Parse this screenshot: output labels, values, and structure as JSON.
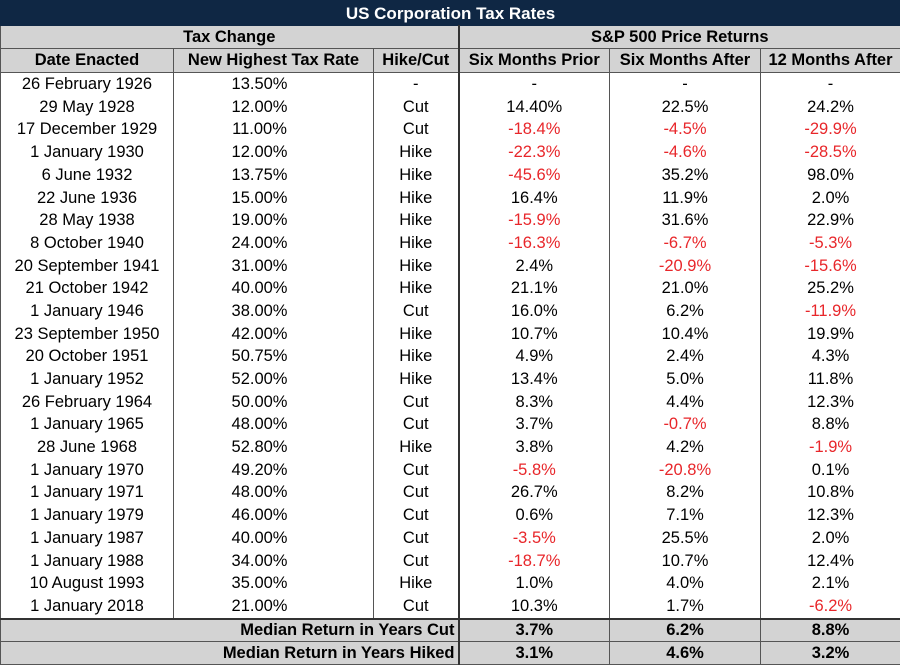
{
  "title": "US Corporation Tax Rates",
  "groups": {
    "tax_change": "Tax Change",
    "sp500": "S&P 500 Price Returns"
  },
  "headers": {
    "date": "Date Enacted",
    "rate": "New Highest Tax Rate",
    "hikecut": "Hike/Cut",
    "prior6": "Six Months Prior",
    "after6": "Six Months After",
    "after12": "12 Months After"
  },
  "colors": {
    "title_bg": "#0f2744",
    "header_bg": "#d3d3d3",
    "negative": "#e8262a"
  },
  "rows": [
    {
      "date": "26 February 1926",
      "rate": "13.50%",
      "action": "-",
      "prior6": "-",
      "after6": "-",
      "after12": "-"
    },
    {
      "date": "29 May 1928",
      "rate": "12.00%",
      "action": "Cut",
      "prior6": "14.40%",
      "after6": "22.5%",
      "after12": "24.2%"
    },
    {
      "date": "17 December 1929",
      "rate": "11.00%",
      "action": "Cut",
      "prior6": "-18.4%",
      "after6": "-4.5%",
      "after12": "-29.9%"
    },
    {
      "date": "1 January 1930",
      "rate": "12.00%",
      "action": "Hike",
      "prior6": "-22.3%",
      "after6": "-4.6%",
      "after12": "-28.5%"
    },
    {
      "date": "6 June 1932",
      "rate": "13.75%",
      "action": "Hike",
      "prior6": "-45.6%",
      "after6": "35.2%",
      "after12": "98.0%"
    },
    {
      "date": "22 June 1936",
      "rate": "15.00%",
      "action": "Hike",
      "prior6": "16.4%",
      "after6": "11.9%",
      "after12": "2.0%"
    },
    {
      "date": "28 May 1938",
      "rate": "19.00%",
      "action": "Hike",
      "prior6": "-15.9%",
      "after6": "31.6%",
      "after12": "22.9%"
    },
    {
      "date": "8 October 1940",
      "rate": "24.00%",
      "action": "Hike",
      "prior6": "-16.3%",
      "after6": "-6.7%",
      "after12": "-5.3%"
    },
    {
      "date": "20 September 1941",
      "rate": "31.00%",
      "action": "Hike",
      "prior6": "2.4%",
      "after6": "-20.9%",
      "after12": "-15.6%"
    },
    {
      "date": "21 October 1942",
      "rate": "40.00%",
      "action": "Hike",
      "prior6": "21.1%",
      "after6": "21.0%",
      "after12": "25.2%"
    },
    {
      "date": "1 January 1946",
      "rate": "38.00%",
      "action": "Cut",
      "prior6": "16.0%",
      "after6": "6.2%",
      "after12": "-11.9%"
    },
    {
      "date": "23 September 1950",
      "rate": "42.00%",
      "action": "Hike",
      "prior6": "10.7%",
      "after6": "10.4%",
      "after12": "19.9%"
    },
    {
      "date": "20 October 1951",
      "rate": "50.75%",
      "action": "Hike",
      "prior6": "4.9%",
      "after6": "2.4%",
      "after12": "4.3%"
    },
    {
      "date": "1 January 1952",
      "rate": "52.00%",
      "action": "Hike",
      "prior6": "13.4%",
      "after6": "5.0%",
      "after12": "11.8%"
    },
    {
      "date": "26 February 1964",
      "rate": "50.00%",
      "action": "Cut",
      "prior6": "8.3%",
      "after6": "4.4%",
      "after12": "12.3%"
    },
    {
      "date": "1 January 1965",
      "rate": "48.00%",
      "action": "Cut",
      "prior6": "3.7%",
      "after6": "-0.7%",
      "after12": "8.8%"
    },
    {
      "date": "28 June 1968",
      "rate": "52.80%",
      "action": "Hike",
      "prior6": "3.8%",
      "after6": "4.2%",
      "after12": "-1.9%"
    },
    {
      "date": "1 January 1970",
      "rate": "49.20%",
      "action": "Cut",
      "prior6": "-5.8%",
      "after6": "-20.8%",
      "after12": "0.1%"
    },
    {
      "date": "1 January 1971",
      "rate": "48.00%",
      "action": "Cut",
      "prior6": "26.7%",
      "after6": "8.2%",
      "after12": "10.8%"
    },
    {
      "date": "1 January 1979",
      "rate": "46.00%",
      "action": "Cut",
      "prior6": "0.6%",
      "after6": "7.1%",
      "after12": "12.3%"
    },
    {
      "date": "1 January 1987",
      "rate": "40.00%",
      "action": "Cut",
      "prior6": "-3.5%",
      "after6": "25.5%",
      "after12": "2.0%"
    },
    {
      "date": "1 January 1988",
      "rate": "34.00%",
      "action": "Cut",
      "prior6": "-18.7%",
      "after6": "10.7%",
      "after12": "12.4%"
    },
    {
      "date": "10 August 1993",
      "rate": "35.00%",
      "action": "Hike",
      "prior6": "1.0%",
      "after6": "4.0%",
      "after12": "2.1%"
    },
    {
      "date": "1 January 2018",
      "rate": "21.00%",
      "action": "Cut",
      "prior6": "10.3%",
      "after6": "1.7%",
      "after12": "-6.2%"
    }
  ],
  "summary": [
    {
      "label": "Median Return in Years Cut",
      "prior6": "3.7%",
      "after6": "6.2%",
      "after12": "8.8%"
    },
    {
      "label": "Median Return in Years Hiked",
      "prior6": "3.1%",
      "after6": "4.6%",
      "after12": "3.2%"
    }
  ]
}
